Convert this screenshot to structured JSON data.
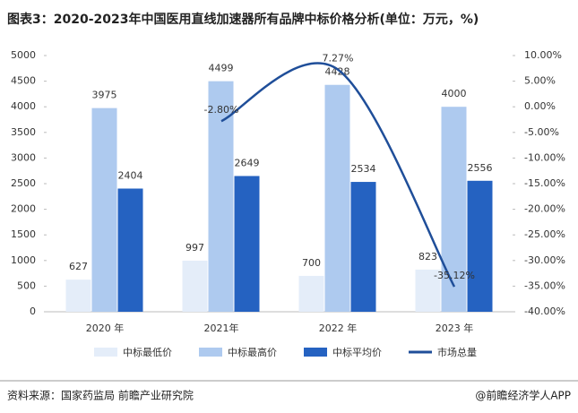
{
  "chart_data": {
    "type": "bar",
    "title": "图表3：2020-2023年中国医用直线加速器所有品牌中标价格分析(单位：万元，%)",
    "categories": [
      "2020 年",
      "2021年",
      "2022 年",
      "2023 年"
    ],
    "series": [
      {
        "name": "中标最低价",
        "color": "#e4edf9",
        "values": [
          627,
          997,
          700,
          823
        ]
      },
      {
        "name": "中标最高价",
        "color": "#aecaef",
        "values": [
          3975,
          4499,
          4428,
          4000
        ]
      },
      {
        "name": "中标平均价",
        "color": "#2562c1",
        "values": [
          2404,
          2649,
          2534,
          2556
        ]
      },
      {
        "name": "市场总量",
        "color": "#1f4e99",
        "type": "line",
        "axis": "y2",
        "values": [
          null,
          -2.8,
          7.27,
          -35.12
        ],
        "value_labels": [
          null,
          "-2.80%",
          "7.27%",
          "-35.12%"
        ]
      }
    ],
    "ylim": [
      0,
      5000
    ],
    "yticks": [
      0,
      500,
      1000,
      1500,
      2000,
      2500,
      3000,
      3500,
      4000,
      4500,
      5000
    ],
    "y2lim": [
      -40,
      10
    ],
    "y2ticks": [
      {
        "value": -40,
        "label": "-40.00%"
      },
      {
        "value": -35,
        "label": "-35.00%"
      },
      {
        "value": -30,
        "label": "-30.00%"
      },
      {
        "value": -25,
        "label": "-25.00%"
      },
      {
        "value": -20,
        "label": "-20.00%"
      },
      {
        "value": -15,
        "label": "-15.00%"
      },
      {
        "value": -10,
        "label": "-10.00%"
      },
      {
        "value": -5,
        "label": "-5.00%"
      },
      {
        "value": 0,
        "label": "0.00%"
      },
      {
        "value": 5,
        "label": "5.00%"
      },
      {
        "value": 10,
        "label": "10.00%"
      }
    ],
    "source": "资料来源：国家药监局 前瞻产业研究院",
    "credit": "@前瞻经济学人APP"
  }
}
